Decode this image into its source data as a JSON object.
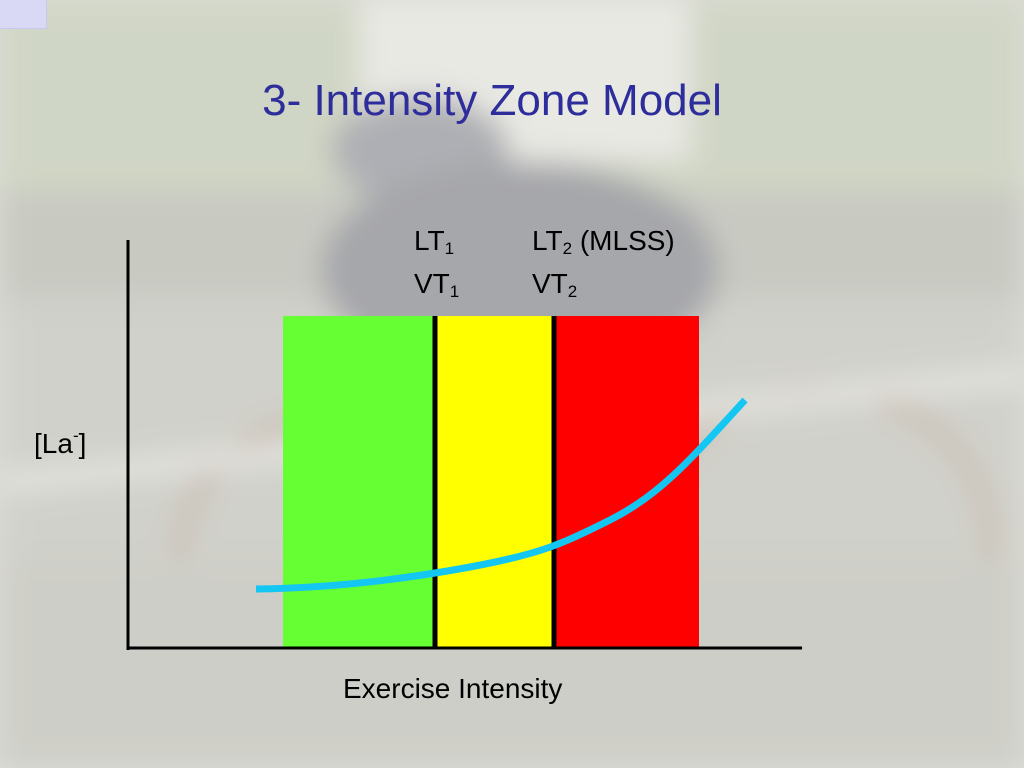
{
  "slide": {
    "title": "3- Intensity Zone Model"
  },
  "axes": {
    "ylabel_base": "[La",
    "ylabel_sup": "-",
    "ylabel_close": "]",
    "xlabel": "Exercise Intensity"
  },
  "thresholds": {
    "first": {
      "lt": "LT",
      "lt_sub": "1",
      "vt": "VT",
      "vt_sub": "1"
    },
    "second": {
      "lt": "LT",
      "lt_sub": "2",
      "lt_suffix": " (MLSS)",
      "vt": "VT",
      "vt_sub": "2"
    }
  },
  "zones": [
    {
      "name": "zone-1",
      "color": "#66ff33"
    },
    {
      "name": "zone-2",
      "color": "#ffff00"
    },
    {
      "name": "zone-3",
      "color": "#ff0000"
    }
  ],
  "curve": {
    "color": "#13c7f2"
  }
}
